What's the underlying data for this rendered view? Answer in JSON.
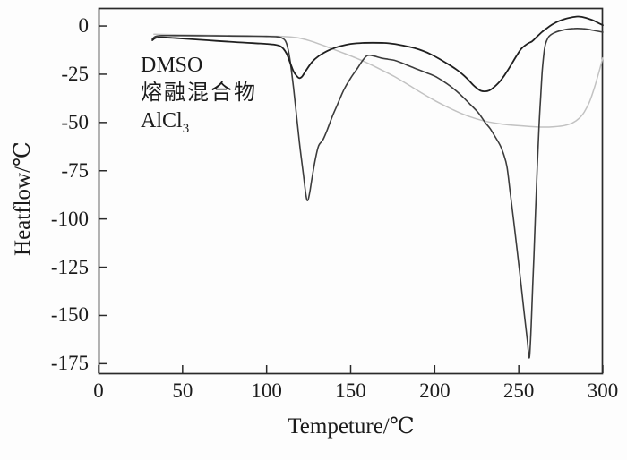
{
  "figure": {
    "xlabel": "Tempeture/℃",
    "ylabel": "Heatflow/℃",
    "x_ticks": [
      0,
      50,
      100,
      150,
      200,
      250,
      300
    ],
    "y_ticks": [
      0,
      -25,
      -50,
      -75,
      -100,
      -125,
      -150,
      -175
    ],
    "legend": [
      {
        "text": "DMSO",
        "sub": ""
      },
      {
        "text": "熔融混合物",
        "sub": ""
      },
      {
        "text": "AlCl",
        "sub": "3"
      }
    ],
    "colors": {
      "axis": "#2a2a2a",
      "text": "#1b1b1b",
      "background": "#fdfdfd",
      "curve_dark_deep": "#3c3c3c",
      "curve_dark_moderate": "#1f1f1f",
      "curve_gray": "#c2c2c2"
    }
  },
  "chart_data": {
    "type": "line",
    "title": "",
    "xlabel": "Tempeture/℃",
    "ylabel": "Heatflow/℃",
    "xlim": [
      0,
      300
    ],
    "ylim": [
      -180.4,
      9.3
    ],
    "grid": false,
    "legend_position": "upper-left text block (no keys/markers)",
    "series": [
      {
        "id": "alcl3",
        "name": "AlCl3",
        "color": "#c2c2c2",
        "points": [
          [
            33,
            -4.3
          ],
          [
            50,
            -4.6
          ],
          [
            70,
            -4.9
          ],
          [
            90,
            -5.1
          ],
          [
            105,
            -5.3
          ],
          [
            113,
            -5.6
          ],
          [
            119,
            -6.2
          ],
          [
            125,
            -7.5
          ],
          [
            131,
            -9.2
          ],
          [
            138,
            -11.5
          ],
          [
            145,
            -13.8
          ],
          [
            152,
            -16.2
          ],
          [
            160,
            -19.2
          ],
          [
            168,
            -22.6
          ],
          [
            176,
            -26.2
          ],
          [
            184,
            -30.3
          ],
          [
            192,
            -34.6
          ],
          [
            200,
            -38.6
          ],
          [
            208,
            -42.2
          ],
          [
            216,
            -45.4
          ],
          [
            224,
            -47.9
          ],
          [
            232,
            -49.7
          ],
          [
            240,
            -50.8
          ],
          [
            248,
            -51.5
          ],
          [
            256,
            -52.0
          ],
          [
            264,
            -52.4
          ],
          [
            271,
            -52.2
          ],
          [
            277,
            -51.6
          ],
          [
            282,
            -50.2
          ],
          [
            286,
            -47.8
          ],
          [
            289,
            -44.5
          ],
          [
            292,
            -39.5
          ],
          [
            295,
            -32.0
          ],
          [
            297.5,
            -24.5
          ],
          [
            300,
            -16.5
          ]
        ]
      },
      {
        "id": "dmso",
        "name": "DMSO",
        "color": "#3c3c3c",
        "points": [
          [
            32,
            -6.8
          ],
          [
            34,
            -5.4
          ],
          [
            38,
            -5.0
          ],
          [
            50,
            -5.0
          ],
          [
            65,
            -5.1
          ],
          [
            80,
            -5.2
          ],
          [
            92,
            -5.3
          ],
          [
            100,
            -5.4
          ],
          [
            106,
            -5.6
          ],
          [
            109,
            -6.2
          ],
          [
            111,
            -7.5
          ],
          [
            112.5,
            -11
          ],
          [
            114,
            -18
          ],
          [
            116,
            -32
          ],
          [
            118,
            -48
          ],
          [
            120,
            -64
          ],
          [
            122,
            -78
          ],
          [
            123.3,
            -87
          ],
          [
            124.3,
            -90.5
          ],
          [
            125.5,
            -87
          ],
          [
            127,
            -79
          ],
          [
            129,
            -69
          ],
          [
            131,
            -62
          ],
          [
            133.5,
            -59
          ],
          [
            136,
            -54
          ],
          [
            139,
            -47
          ],
          [
            142,
            -41
          ],
          [
            146,
            -33
          ],
          [
            150,
            -27
          ],
          [
            154,
            -22
          ],
          [
            157,
            -18
          ],
          [
            160,
            -15.3
          ],
          [
            164,
            -15.6
          ],
          [
            168,
            -16.6
          ],
          [
            172,
            -17.2
          ],
          [
            176,
            -17.8
          ],
          [
            180,
            -19.0
          ],
          [
            185,
            -20.8
          ],
          [
            190,
            -22.5
          ],
          [
            195,
            -24.2
          ],
          [
            200,
            -26.0
          ],
          [
            205,
            -28.6
          ],
          [
            209,
            -31.0
          ],
          [
            213,
            -33.8
          ],
          [
            217,
            -37.0
          ],
          [
            221,
            -40.5
          ],
          [
            226,
            -45.0
          ],
          [
            230,
            -50.0
          ],
          [
            233,
            -53.2
          ],
          [
            236,
            -57.5
          ],
          [
            239,
            -62.0
          ],
          [
            241,
            -66.5
          ],
          [
            243,
            -73.0
          ],
          [
            245,
            -87.0
          ],
          [
            247,
            -101
          ],
          [
            249,
            -116
          ],
          [
            251,
            -131
          ],
          [
            253,
            -147
          ],
          [
            255,
            -162
          ],
          [
            256.2,
            -172
          ],
          [
            257,
            -163
          ],
          [
            258,
            -141
          ],
          [
            259,
            -119
          ],
          [
            260,
            -96
          ],
          [
            261,
            -73
          ],
          [
            262,
            -53
          ],
          [
            263,
            -37
          ],
          [
            264,
            -23
          ],
          [
            265,
            -14
          ],
          [
            266,
            -9.0
          ],
          [
            267.5,
            -6.0
          ],
          [
            269,
            -4.6
          ],
          [
            271,
            -3.6
          ],
          [
            274,
            -2.6
          ],
          [
            278,
            -1.8
          ],
          [
            283,
            -1.3
          ],
          [
            288,
            -1.4
          ],
          [
            293,
            -2.0
          ],
          [
            297,
            -2.7
          ],
          [
            300,
            -3.2
          ]
        ]
      },
      {
        "id": "mixture",
        "name": "熔融混合物",
        "color": "#1f1f1f",
        "points": [
          [
            32,
            -7.4
          ],
          [
            34,
            -6.2
          ],
          [
            38,
            -5.9
          ],
          [
            50,
            -6.5
          ],
          [
            65,
            -7.4
          ],
          [
            80,
            -8.3
          ],
          [
            92,
            -8.9
          ],
          [
            100,
            -9.3
          ],
          [
            105,
            -9.7
          ],
          [
            108,
            -10.4
          ],
          [
            110,
            -11.8
          ],
          [
            112,
            -14.5
          ],
          [
            114,
            -19.0
          ],
          [
            116,
            -23.5
          ],
          [
            118,
            -26.0
          ],
          [
            119.5,
            -27.0
          ],
          [
            121,
            -26.3
          ],
          [
            123,
            -23.7
          ],
          [
            127,
            -18.7
          ],
          [
            131,
            -15.6
          ],
          [
            136,
            -13.0
          ],
          [
            141,
            -11.2
          ],
          [
            146,
            -10.0
          ],
          [
            151,
            -9.2
          ],
          [
            157,
            -8.8
          ],
          [
            163,
            -8.7
          ],
          [
            170,
            -8.8
          ],
          [
            176,
            -9.3
          ],
          [
            182,
            -10.3
          ],
          [
            188,
            -11.5
          ],
          [
            193,
            -12.9
          ],
          [
            198,
            -14.8
          ],
          [
            203,
            -17.2
          ],
          [
            208,
            -19.8
          ],
          [
            213,
            -22.6
          ],
          [
            217,
            -25.4
          ],
          [
            220,
            -27.9
          ],
          [
            223,
            -30.7
          ],
          [
            225.5,
            -32.5
          ],
          [
            227.5,
            -33.6
          ],
          [
            230,
            -33.9
          ],
          [
            232.5,
            -33.4
          ],
          [
            235,
            -31.9
          ],
          [
            237.5,
            -29.9
          ],
          [
            240,
            -27.4
          ],
          [
            243,
            -23.6
          ],
          [
            246,
            -19.3
          ],
          [
            249,
            -15.0
          ],
          [
            251.5,
            -11.8
          ],
          [
            254,
            -9.9
          ],
          [
            256,
            -8.8
          ],
          [
            258,
            -7.9
          ],
          [
            261,
            -5.4
          ],
          [
            264,
            -3.0
          ],
          [
            267,
            -1.0
          ],
          [
            270,
            0.8
          ],
          [
            273,
            2.2
          ],
          [
            277,
            3.5
          ],
          [
            281,
            4.4
          ],
          [
            285,
            4.9
          ],
          [
            288,
            4.6
          ],
          [
            291,
            3.9
          ],
          [
            294,
            3.0
          ],
          [
            297,
            1.7
          ],
          [
            300,
            0.4
          ]
        ]
      }
    ]
  }
}
